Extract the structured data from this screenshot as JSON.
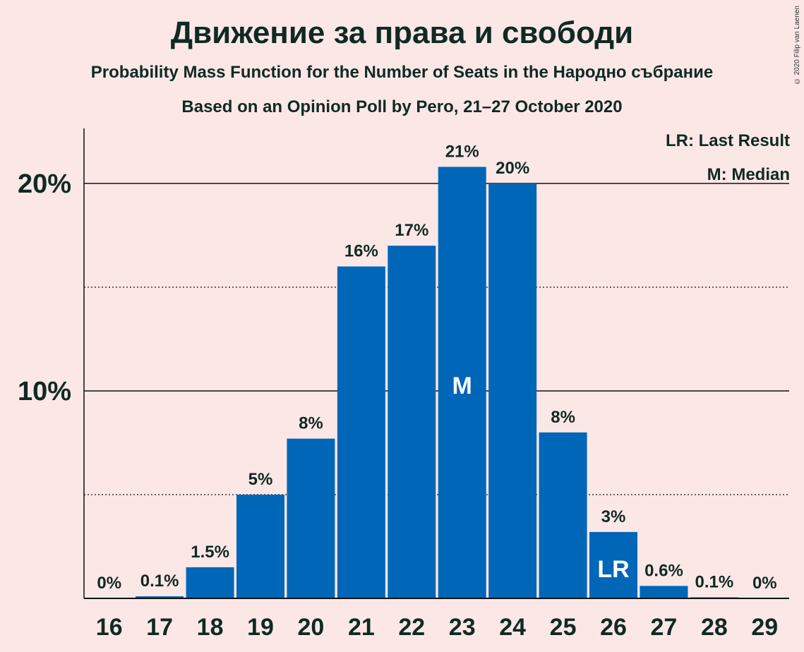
{
  "title": "Движение за права и свободи",
  "subtitle": "Probability Mass Function for the Number of Seats in the Народно събрание",
  "subtitle2": "Based on an Opinion Poll by Pero, 21–27 October 2020",
  "copyright": "© 2020 Filip van Laenen",
  "legend": {
    "lr": "LR: Last Result",
    "m": "M: Median"
  },
  "colors": {
    "bar": "#0066b8",
    "background": "#fce7e7",
    "text": "#0f2a22"
  },
  "chart_data": {
    "type": "bar",
    "categories": [
      "16",
      "17",
      "18",
      "19",
      "20",
      "21",
      "22",
      "23",
      "24",
      "25",
      "26",
      "27",
      "28",
      "29"
    ],
    "values": [
      0,
      0.1,
      1.5,
      5,
      7.7,
      16,
      17,
      20.8,
      20,
      8,
      3.2,
      0.6,
      0.05,
      0
    ],
    "data_labels": [
      "0%",
      "0.1%",
      "1.5%",
      "5%",
      "8%",
      "16%",
      "17%",
      "21%",
      "20%",
      "8%",
      "3%",
      "0.6%",
      "0.1%",
      "0%"
    ],
    "bar_markers": {
      "23": "M",
      "26": "LR"
    },
    "y_ticks": [
      {
        "value": 10,
        "label": "10%"
      },
      {
        "value": 20,
        "label": "20%"
      }
    ],
    "minor_gridlines": [
      5,
      15
    ],
    "ylim": [
      0,
      22.6
    ],
    "legend_position": "top-right",
    "xlabel": "",
    "ylabel": ""
  }
}
